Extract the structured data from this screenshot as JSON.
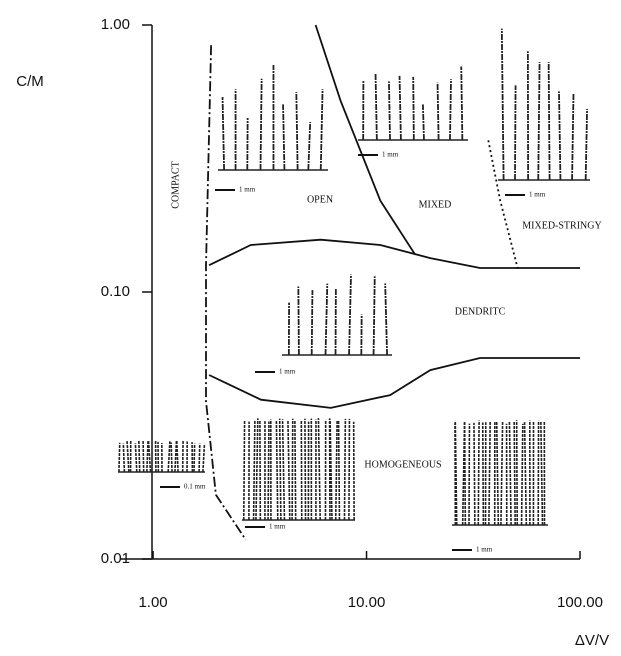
{
  "chart_data": {
    "type": "phase-diagram",
    "xlabel": "ΔV/V",
    "ylabel": "C/M",
    "xscale": "log",
    "yscale": "log",
    "xlim": [
      0.7,
      100
    ],
    "ylim": [
      0.01,
      1
    ],
    "xticks": [
      {
        "value": 1,
        "label": "1.00"
      },
      {
        "value": 10,
        "label": "10.00"
      },
      {
        "value": 100,
        "label": "100.00"
      }
    ],
    "yticks": [
      {
        "value": 0.01,
        "label": "0.01"
      },
      {
        "value": 0.1,
        "label": "0.10"
      },
      {
        "value": 1,
        "label": "1.00"
      }
    ],
    "color": "#111111",
    "boundaries": [
      {
        "style": "dashdot",
        "x": [
          1.87,
          1.77,
          1.77,
          1.97,
          2.72
        ],
        "y": [
          0.84,
          0.126,
          0.039,
          0.0174,
          0.0118
        ]
      },
      {
        "style": "solid",
        "x": [
          5.77,
          7.56,
          11.6,
          16.9
        ],
        "y": [
          1.0,
          0.52,
          0.22,
          0.138
        ]
      },
      {
        "style": "solid",
        "x": [
          1.83,
          2.87,
          6.1,
          11.6,
          19.9,
          34,
          100
        ],
        "y": [
          0.126,
          0.15,
          0.157,
          0.15,
          0.134,
          0.123,
          0.123
        ]
      },
      {
        "style": "solid",
        "x": [
          1.83,
          3.2,
          6.8,
          12.9,
          19.9,
          34,
          100
        ],
        "y": [
          0.0489,
          0.0395,
          0.0368,
          0.0411,
          0.051,
          0.0566,
          0.0566
        ]
      },
      {
        "style": "dotted",
        "x": [
          37.2,
          42.3,
          51.3
        ],
        "y": [
          0.37,
          0.22,
          0.121
        ]
      }
    ],
    "regions": [
      "COMPACT",
      "OPEN",
      "MIXED",
      "MIXED-STRINGY",
      "DENDRITC",
      "HOMOGENEOUS"
    ],
    "insets": [
      {
        "scale": "1 mm"
      },
      {
        "scale": "1 mm"
      },
      {
        "scale": "1 mm"
      },
      {
        "scale": "1 mm"
      },
      {
        "scale": "0.1 mm"
      },
      {
        "scale": "1 mm"
      },
      {
        "scale": "1 mm"
      }
    ]
  }
}
